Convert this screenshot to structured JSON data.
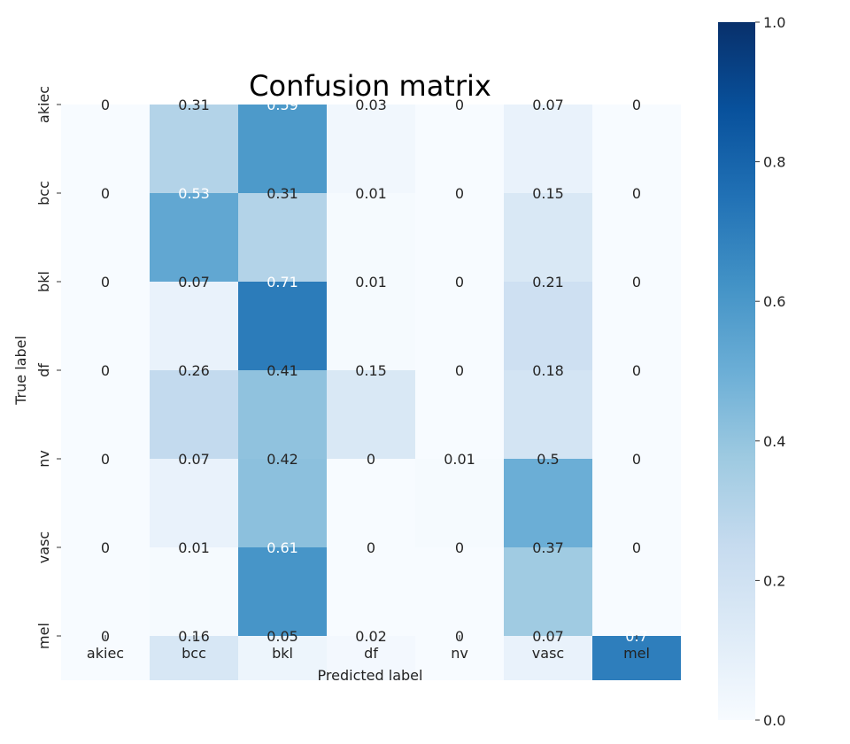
{
  "chart_data": {
    "type": "heatmap",
    "title": "Confusion matrix",
    "xlabel": "Predicted label",
    "ylabel": "True label",
    "x_categories": [
      "akiec",
      "bcc",
      "bkl",
      "df",
      "nv",
      "vasc",
      "mel"
    ],
    "y_categories": [
      "akiec",
      "bcc",
      "bkl",
      "df",
      "nv",
      "vasc",
      "mel"
    ],
    "values": [
      [
        0,
        0.31,
        0.59,
        0.03,
        0,
        0.07,
        0
      ],
      [
        0,
        0.53,
        0.31,
        0.01,
        0,
        0.15,
        0
      ],
      [
        0,
        0.07,
        0.71,
        0.01,
        0,
        0.21,
        0
      ],
      [
        0,
        0.26,
        0.41,
        0.15,
        0,
        0.18,
        0
      ],
      [
        0,
        0.07,
        0.42,
        0,
        0.01,
        0.5,
        0
      ],
      [
        0,
        0.01,
        0.61,
        0,
        0,
        0.37,
        0
      ],
      [
        0,
        0.16,
        0.05,
        0.02,
        0,
        0.07,
        0.7
      ]
    ],
    "labels": [
      [
        "0",
        "0.31",
        "0.59",
        "0.03",
        "0",
        "0.07",
        "0"
      ],
      [
        "0",
        "0.53",
        "0.31",
        "0.01",
        "0",
        "0.15",
        "0"
      ],
      [
        "0",
        "0.07",
        "0.71",
        "0.01",
        "0",
        "0.21",
        "0"
      ],
      [
        "0",
        "0.26",
        "0.41",
        "0.15",
        "0",
        "0.18",
        "0"
      ],
      [
        "0",
        "0.07",
        "0.42",
        "0",
        "0.01",
        "0.5",
        "0"
      ],
      [
        "0",
        "0.01",
        "0.61",
        "0",
        "0",
        "0.37",
        "0"
      ],
      [
        "0",
        "0.16",
        "0.05",
        "0.02",
        "0",
        "0.07",
        "0.7"
      ]
    ],
    "colormap": "Blues",
    "colormap_stops": [
      "#f7fbff",
      "#deebf7",
      "#c6dbef",
      "#9ecae1",
      "#6baed6",
      "#4292c6",
      "#2171b5",
      "#08519c",
      "#08306b"
    ],
    "vrange": [
      0,
      1
    ],
    "colorbar_ticks": [
      "0.0",
      "0.2",
      "0.4",
      "0.6",
      "0.8",
      "1.0"
    ],
    "text_light_color": "#ffffff",
    "text_dark_color": "#262626",
    "grid": false,
    "legend": "colorbar-right"
  }
}
